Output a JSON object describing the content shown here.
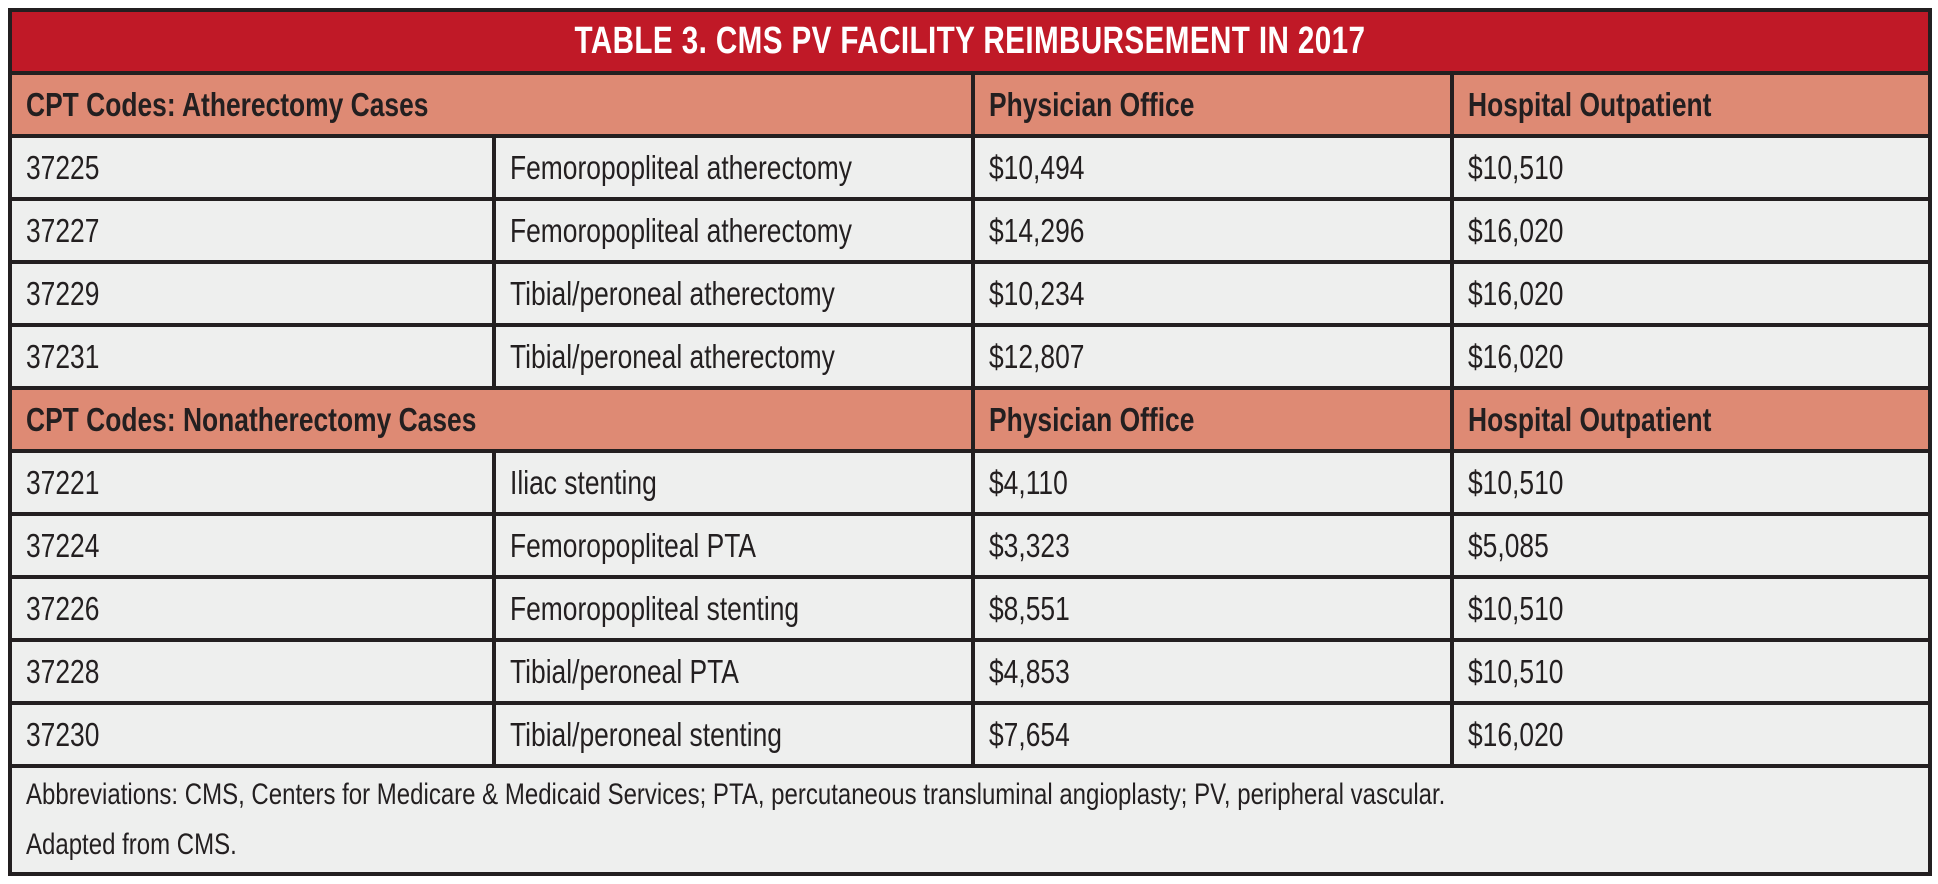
{
  "title": "TABLE 3.  CMS PV FACILITY REIMBURSEMENT IN 2017",
  "colors": {
    "title_bg": "#c01927",
    "header_bg": "#de8a74",
    "row_bg": "#eeefee",
    "border": "#231f20"
  },
  "sections": [
    {
      "header": {
        "label": "CPT Codes: Atherectomy Cases",
        "col_physician": "Physician Office",
        "col_hospital": "Hospital Outpatient"
      },
      "rows": [
        {
          "code": "37225",
          "procedure": "Femoropopliteal atherectomy",
          "physician": "$10,494",
          "hospital": "$10,510"
        },
        {
          "code": "37227",
          "procedure": "Femoropopliteal atherectomy",
          "physician": "$14,296",
          "hospital": "$16,020"
        },
        {
          "code": "37229",
          "procedure": "Tibial/peroneal atherectomy",
          "physician": "$10,234",
          "hospital": "$16,020"
        },
        {
          "code": "37231",
          "procedure": "Tibial/peroneal atherectomy",
          "physician": "$12,807",
          "hospital": "$16,020"
        }
      ]
    },
    {
      "header": {
        "label": "CPT Codes: Nonatherectomy Cases",
        "col_physician": "Physician Office",
        "col_hospital": "Hospital Outpatient"
      },
      "rows": [
        {
          "code": "37221",
          "procedure": "Iliac stenting",
          "physician": "$4,110",
          "hospital": "$10,510"
        },
        {
          "code": "37224",
          "procedure": "Femoropopliteal PTA",
          "physician": "$3,323",
          "hospital": "$5,085"
        },
        {
          "code": "37226",
          "procedure": "Femoropopliteal stenting",
          "physician": "$8,551",
          "hospital": "$10,510"
        },
        {
          "code": "37228",
          "procedure": "Tibial/peroneal PTA",
          "physician": "$4,853",
          "hospital": "$10,510"
        },
        {
          "code": "37230",
          "procedure": "Tibial/peroneal stenting",
          "physician": "$7,654",
          "hospital": "$16,020"
        }
      ]
    }
  ],
  "footnotes": [
    "Abbreviations: CMS, Centers for Medicare & Medicaid Services; PTA, percutaneous transluminal angioplasty; PV, peripheral vascular.",
    "Adapted from CMS."
  ]
}
